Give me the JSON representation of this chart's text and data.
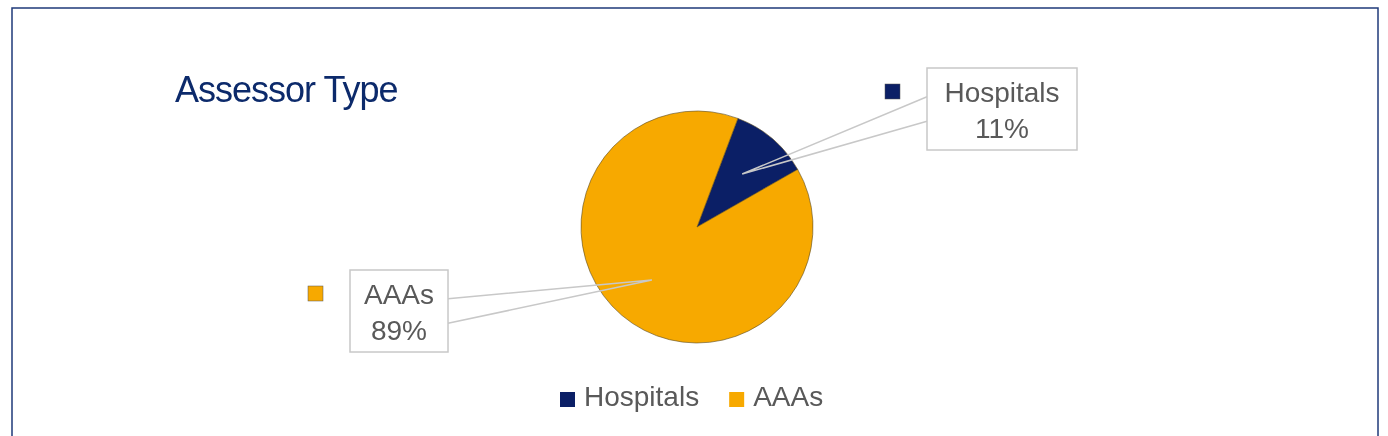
{
  "chart_data": {
    "type": "pie",
    "title": "Assessor Type",
    "categories": [
      "Hospitals",
      "AAAs"
    ],
    "values": [
      11,
      89
    ],
    "colors": [
      "#0b1f66",
      "#f7a900"
    ],
    "value_labels": [
      "11%",
      "89%"
    ],
    "legend": "bottom"
  }
}
